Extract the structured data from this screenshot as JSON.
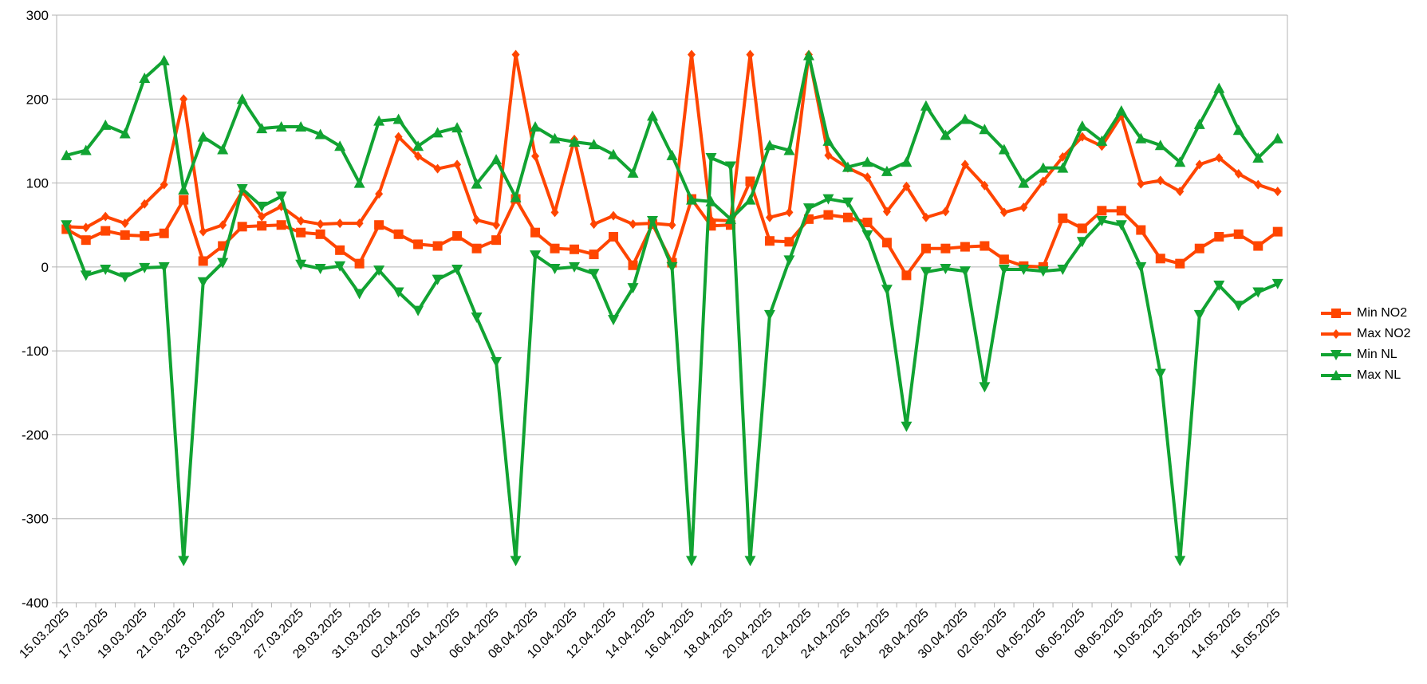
{
  "chart_data": {
    "type": "line",
    "ylim": [
      -400,
      300
    ],
    "yticks": [
      -400,
      -300,
      -200,
      -100,
      0,
      100,
      200,
      300
    ],
    "grid": "horizontal",
    "legend_position": "right",
    "categories": [
      "15.03.2025",
      "16.03.2025",
      "17.03.2025",
      "18.03.2025",
      "19.03.2025",
      "20.03.2025",
      "21.03.2025",
      "22.03.2025",
      "23.03.2025",
      "24.03.2025",
      "25.03.2025",
      "26.03.2025",
      "27.03.2025",
      "28.03.2025",
      "29.03.2025",
      "30.03.2025",
      "31.03.2025",
      "01.04.2025",
      "02.04.2025",
      "03.04.2025",
      "04.04.2025",
      "05.04.2025",
      "06.04.2025",
      "07.04.2025",
      "08.04.2025",
      "09.04.2025",
      "10.04.2025",
      "11.04.2025",
      "12.04.2025",
      "13.04.2025",
      "14.04.2025",
      "15.04.2025",
      "16.04.2025",
      "17.04.2025",
      "18.04.2025",
      "19.04.2025",
      "20.04.2025",
      "21.04.2025",
      "22.04.2025",
      "23.04.2025",
      "24.04.2025",
      "25.04.2025",
      "26.04.2025",
      "27.04.2025",
      "28.04.2025",
      "29.04.2025",
      "30.04.2025",
      "01.05.2025",
      "02.05.2025",
      "03.05.2025",
      "04.05.2025",
      "05.05.2025",
      "06.05.2025",
      "07.05.2025",
      "08.05.2025",
      "09.05.2025",
      "10.05.2025",
      "11.05.2025",
      "12.05.2025",
      "13.05.2025",
      "14.05.2025",
      "15.05.2025",
      "16.05.2025"
    ],
    "tick_labels": [
      "15.03.2025",
      "17.03.2025",
      "19.03.2025",
      "21.03.2025",
      "23.03.2025",
      "25.03.2025",
      "27.03.2025",
      "29.03.2025",
      "31.03.2025",
      "02.04.2025",
      "04.04.2025",
      "06.04.2025",
      "08.04.2025",
      "10.04.2025",
      "12.04.2025",
      "14.04.2025",
      "16.04.2025",
      "18.04.2025",
      "20.04.2025",
      "22.04.2025",
      "24.04.2025",
      "26.04.2025",
      "28.04.2025",
      "30.04.2025",
      "02.05.2025",
      "04.05.2025",
      "06.05.2025",
      "08.05.2025",
      "10.05.2025",
      "12.05.2025",
      "14.05.2025",
      "16.05.2025"
    ],
    "series": [
      {
        "name": "Min NO2",
        "color": "#ff4500",
        "marker": "square",
        "values": [
          45,
          32,
          43,
          38,
          37,
          40,
          80,
          7,
          25,
          48,
          49,
          50,
          41,
          39,
          20,
          4,
          50,
          39,
          27,
          25,
          37,
          22,
          32,
          81,
          41,
          22,
          21,
          15,
          36,
          2,
          51,
          5,
          81,
          49,
          50,
          102,
          31,
          30,
          57,
          62,
          59,
          53,
          29,
          -10,
          22,
          22,
          24,
          25,
          9,
          1,
          0,
          58,
          46,
          67,
          67,
          44,
          10,
          4,
          22,
          36,
          39,
          25,
          42
        ]
      },
      {
        "name": "Max NO2",
        "color": "#ff4500",
        "marker": "diamond",
        "values": [
          48,
          47,
          60,
          52,
          75,
          98,
          200,
          42,
          50,
          90,
          60,
          72,
          55,
          51,
          52,
          52,
          87,
          155,
          132,
          117,
          122,
          56,
          50,
          253,
          132,
          65,
          152,
          51,
          61,
          51,
          52,
          50,
          253,
          56,
          55,
          253,
          59,
          65,
          253,
          133,
          118,
          107,
          66,
          96,
          59,
          66,
          122,
          97,
          65,
          71,
          102,
          131,
          155,
          144,
          180,
          99,
          103,
          90,
          122,
          130,
          111,
          98,
          90
        ]
      },
      {
        "name": "Min NL",
        "color": "#11a332",
        "marker": "triangle-down",
        "values": [
          50,
          -10,
          -3,
          -12,
          -1,
          0,
          -350,
          -18,
          5,
          93,
          72,
          84,
          3,
          -2,
          1,
          -32,
          -4,
          -30,
          -52,
          -15,
          -3,
          -60,
          -113,
          -350,
          14,
          -2,
          0,
          -8,
          -63,
          -25,
          55,
          0,
          -350,
          130,
          120,
          -350,
          -57,
          8,
          70,
          81,
          77,
          38,
          -27,
          -190,
          -6,
          -2,
          -5,
          -143,
          -3,
          -3,
          -5,
          -3,
          30,
          55,
          50,
          0,
          -127,
          -350,
          -57,
          -22,
          -46,
          -30,
          -20
        ]
      },
      {
        "name": "Max NL",
        "color": "#11a332",
        "marker": "triangle-up",
        "values": [
          133,
          139,
          169,
          159,
          225,
          246,
          92,
          155,
          140,
          200,
          165,
          167,
          167,
          158,
          144,
          100,
          174,
          176,
          144,
          160,
          166,
          99,
          128,
          83,
          167,
          153,
          149,
          146,
          134,
          112,
          180,
          133,
          80,
          78,
          57,
          80,
          145,
          139,
          252,
          150,
          119,
          125,
          114,
          125,
          192,
          157,
          176,
          164,
          140,
          100,
          118,
          118,
          168,
          150,
          186,
          153,
          145,
          125,
          170,
          213,
          163,
          130,
          153
        ]
      }
    ]
  }
}
